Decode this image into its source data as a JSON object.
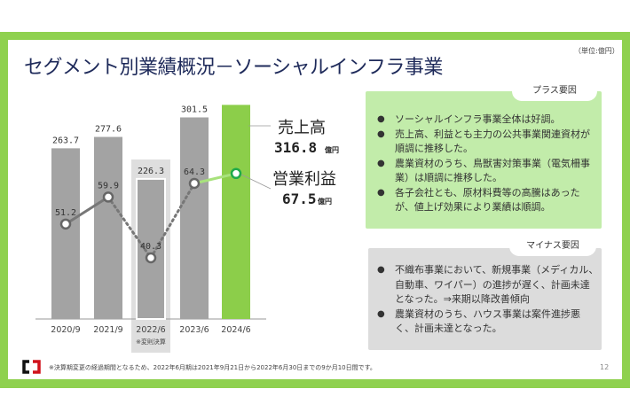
{
  "title": "セグメント別業績概況－ソーシャルインフラ事業",
  "unit": "（単位:億円）",
  "chart_data": {
    "type": "bar+line",
    "categories": [
      "2020/9",
      "2021/9",
      "2022/6",
      "2023/6",
      "2024/6"
    ],
    "series": [
      {
        "name": "売上高",
        "type": "bar",
        "values": [
          263.7,
          277.6,
          226.3,
          301.5,
          316.8
        ]
      },
      {
        "name": "営業利益",
        "type": "line",
        "values": [
          51.2,
          59.9,
          40.3,
          64.3,
          67.5
        ]
      }
    ],
    "category_note": "※変則決算",
    "highlight_category": "2022/6",
    "colors": {
      "bar": "#a3a3a3",
      "bar_current": "#8cce4a",
      "line": "#777777",
      "line_current": "#a8e27c",
      "marker_current": "#1faa4a",
      "highlight_bg": "#dedede"
    },
    "callouts": [
      {
        "label": "売上高",
        "value": "316.8",
        "unit": "億円"
      },
      {
        "label": "営業利益",
        "value": "67.5",
        "unit": "億円"
      }
    ]
  },
  "plus": {
    "label": "プラス要因",
    "items": [
      "ソーシャルインフラ事業全体は好調。",
      "売上高、利益とも主力の公共事業関連資材が順調に推移した。",
      "農業資材のうち、鳥獣害対策事業（電気柵事業）は順調に推移した。",
      "各子会社とも、原材料費等の高騰はあったが、値上げ効果により業績は順調。"
    ]
  },
  "minus": {
    "label": "マイナス要因",
    "items": [
      "不織布事業において、新規事業（メディカル、自動車、ワイパー）の進捗が遅く、計画未達となった。⇒来期以降改善傾向",
      "農業資材のうち、ハウス事業は案件進捗悪く、計画未達となった。"
    ]
  },
  "footnote": "※決算期変更の経過期間となるため、2022年6月期は2021年9月21日から2022年6月30日までの9か月10日間です。",
  "page_number": "12",
  "logo_text": "C"
}
